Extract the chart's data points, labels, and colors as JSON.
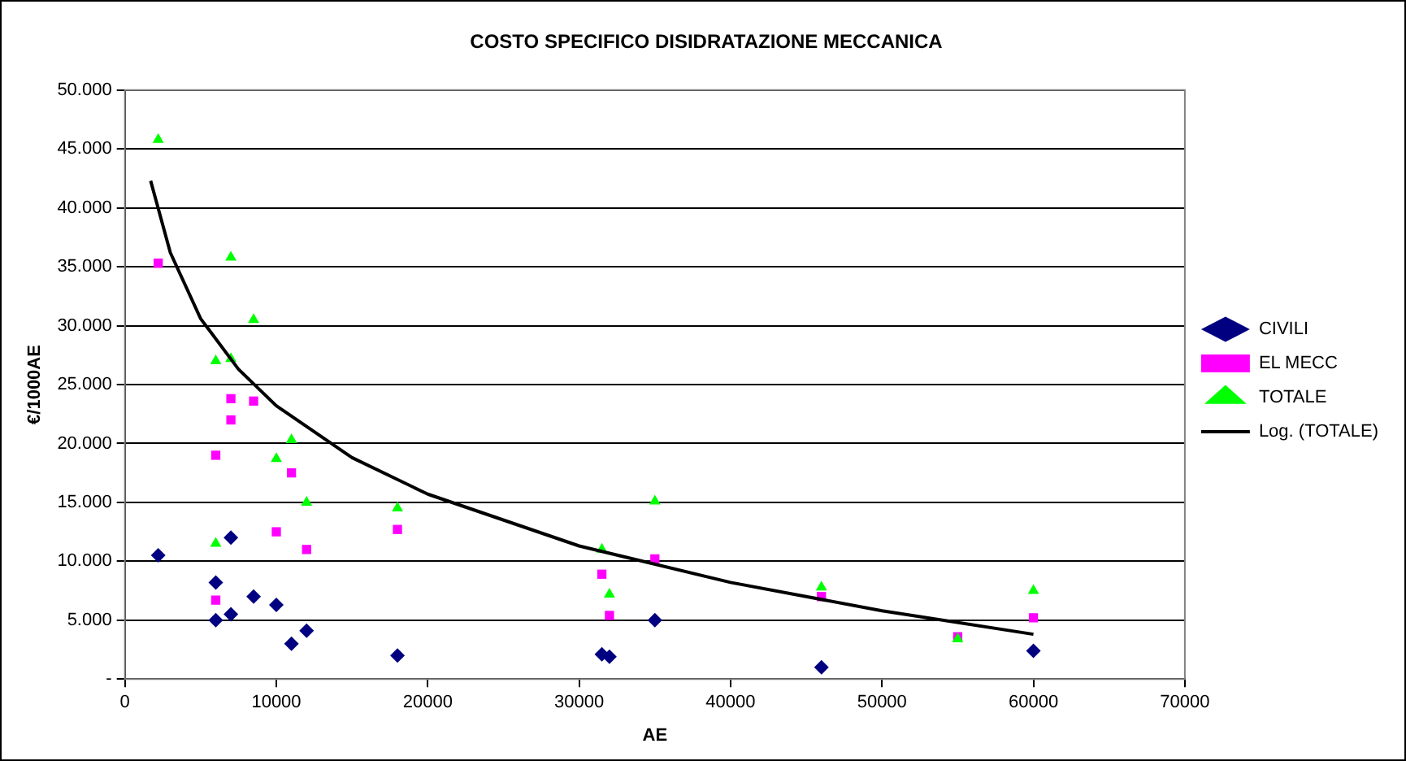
{
  "chart_data": {
    "type": "scatter",
    "title": "COSTO SPECIFICO DISIDRATAZIONE MECCANICA",
    "xlabel": "AE",
    "ylabel": "€/1000AE",
    "xlim": [
      0,
      70000
    ],
    "xticks": [
      0,
      10000,
      20000,
      30000,
      40000,
      50000,
      60000,
      70000
    ],
    "ylim": [
      0,
      50000
    ],
    "yticks": [
      {
        "value": 0,
        "label": "-"
      },
      {
        "value": 5000,
        "label": "5.000"
      },
      {
        "value": 10000,
        "label": "10.000"
      },
      {
        "value": 15000,
        "label": "15.000"
      },
      {
        "value": 20000,
        "label": "20.000"
      },
      {
        "value": 25000,
        "label": "25.000"
      },
      {
        "value": 30000,
        "label": "30.000"
      },
      {
        "value": 35000,
        "label": "35.000"
      },
      {
        "value": 40000,
        "label": "40.000"
      },
      {
        "value": 45000,
        "label": "45.000"
      },
      {
        "value": 50000,
        "label": "50.000"
      }
    ],
    "grid": "y",
    "legend": "right",
    "series": [
      {
        "name": "CIVILI",
        "color": "#000080",
        "marker": "diamond",
        "x": [
          2200,
          6000,
          6000,
          7000,
          7000,
          8500,
          10000,
          11000,
          12000,
          18000,
          31500,
          32000,
          35000,
          46000,
          60000
        ],
        "values": [
          10500,
          8200,
          5000,
          12000,
          5500,
          7000,
          6300,
          3000,
          4100,
          2000,
          2100,
          1900,
          5000,
          1000,
          2400
        ]
      },
      {
        "name": "EL MECC",
        "color": "#ff00ff",
        "marker": "square",
        "x": [
          2200,
          6000,
          6000,
          7000,
          7000,
          8500,
          10000,
          11000,
          12000,
          18000,
          31500,
          32000,
          35000,
          46000,
          55000,
          60000
        ],
        "values": [
          35300,
          19000,
          6700,
          23800,
          22000,
          23600,
          12500,
          17500,
          11000,
          12700,
          8900,
          5400,
          10200,
          7000,
          3600,
          5200
        ]
      },
      {
        "name": "TOTALE",
        "color": "#00ff00",
        "marker": "triangle",
        "x": [
          2200,
          6000,
          6000,
          7000,
          7000,
          8500,
          10000,
          11000,
          12000,
          18000,
          31500,
          32000,
          35000,
          46000,
          55000,
          60000
        ],
        "values": [
          45800,
          27000,
          11500,
          35800,
          27200,
          30500,
          18700,
          20300,
          15000,
          14500,
          11000,
          7200,
          15100,
          7800,
          3400,
          7500
        ]
      },
      {
        "name": "Log. (TOTALE)",
        "type": "line",
        "color": "#000000",
        "marker": "none",
        "line_style": "solid",
        "x": [
          1700,
          3000,
          5000,
          7500,
          10000,
          15000,
          20000,
          30000,
          40000,
          50000,
          60000
        ],
        "values": [
          42300,
          36200,
          30600,
          26300,
          23200,
          18800,
          15700,
          11300,
          8200,
          5800,
          3800
        ]
      }
    ]
  }
}
